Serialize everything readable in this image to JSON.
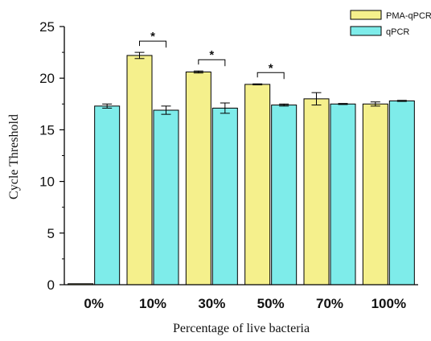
{
  "chart_data": {
    "type": "bar",
    "xlabel": "Percentage of live bacteria",
    "ylabel": "Cycle Threshold",
    "categories": [
      "0%",
      "10%",
      "30%",
      "50%",
      "70%",
      "100%"
    ],
    "ylim": [
      0,
      25
    ],
    "yticks": [
      "0",
      "5",
      "10",
      "15",
      "20",
      "25"
    ],
    "yticks_values": [
      0,
      5,
      10,
      15,
      20,
      25
    ],
    "grid": false,
    "legend_position": "top-right",
    "series": [
      {
        "name": "PMA-qPCR",
        "color": "#f5f08c",
        "values": [
          0,
          22.2,
          20.6,
          19.4,
          18.0,
          17.5
        ],
        "errors": [
          0,
          0.3,
          0.1,
          0.05,
          0.6,
          0.2
        ]
      },
      {
        "name": "qPCR",
        "color": "#7eecea",
        "values": [
          17.3,
          16.9,
          17.1,
          17.4,
          17.5,
          17.8
        ],
        "errors": [
          0.2,
          0.4,
          0.5,
          0.1,
          0.05,
          0.05
        ]
      }
    ],
    "significance": [
      {
        "category": "10%",
        "label": "*"
      },
      {
        "category": "30%",
        "label": "*"
      },
      {
        "category": "50%",
        "label": "*"
      }
    ]
  }
}
